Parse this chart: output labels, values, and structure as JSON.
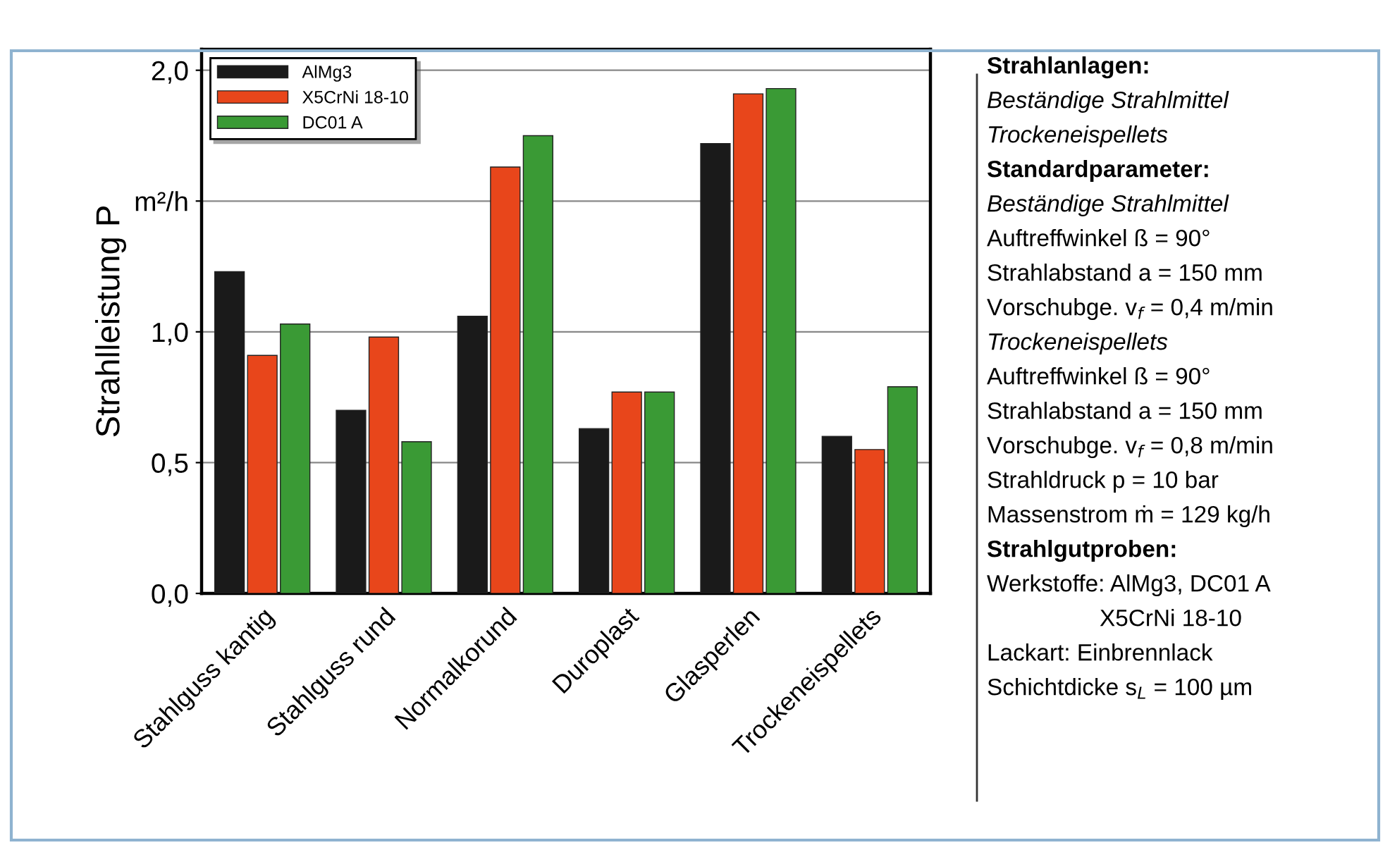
{
  "chart_data": {
    "type": "bar",
    "ylabel": "Strahlleistung P",
    "categories": [
      "Stahlguss kantig",
      "Stahlguss rund",
      "Normalkorund",
      "Duroplast",
      "Glasperlen",
      "Trockeneispellets"
    ],
    "series": [
      {
        "name": "AlMg3",
        "color": "#1a1a1a",
        "values": [
          1.23,
          0.7,
          1.06,
          0.63,
          1.72,
          0.6
        ]
      },
      {
        "name": "X5CrNi 18-10",
        "color": "#e8461b",
        "values": [
          0.91,
          0.98,
          1.63,
          0.77,
          1.91,
          0.55
        ]
      },
      {
        "name": "DC01 A",
        "color": "#3a9a35",
        "values": [
          1.03,
          0.58,
          1.75,
          0.77,
          1.93,
          0.79
        ]
      }
    ],
    "ylim": [
      0,
      2.08
    ],
    "yticks": [
      {
        "value": 0,
        "label": "0,0"
      },
      {
        "value": 0.5,
        "label": "0,5"
      },
      {
        "value": 1.0,
        "label": "1,0"
      },
      {
        "value": 1.5,
        "label": "m²/h"
      },
      {
        "value": 2.0,
        "label": "2,0"
      }
    ],
    "grid": "y",
    "legend": "top left",
    "annotations": [
      "Strahlanlagen:",
      "Beständige Strahlmittel",
      "Trockeneispellets",
      "Standardparameter:",
      "Beständige Strahlmittel",
      "Auftreffwinkel ß = 90°",
      "Strahlabstand a = 150 mm",
      "Vorschubge. v$_{f}$ = 0,4 m/min",
      "Trockeneispellets",
      "Auftreffwinkel ß = 90°",
      "Strahlabstand a = 150 mm",
      "Vorschubge. v$_{f}$ = 0,8 m/min",
      "Strahldruck p = 10 bar",
      "Massenstrom ṁ = 129 kg/h",
      "Strahlgutproben:",
      "Werkstoffe: AlMg3, DC01 A",
      "X5CrNi 18-10",
      "Lackart: Einbrennlack",
      "Schichtdicke s$_{L}$ = 100 µm"
    ]
  }
}
